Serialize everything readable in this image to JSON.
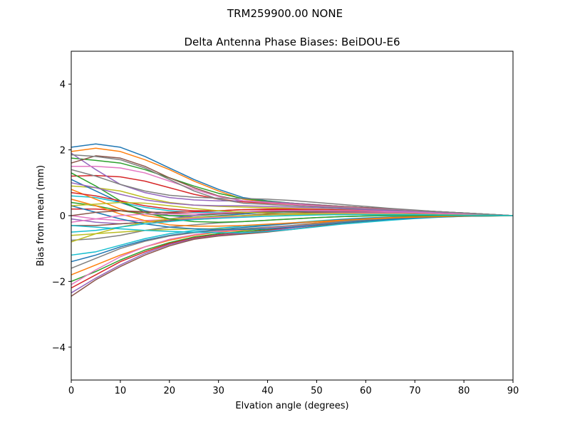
{
  "chart_data": {
    "type": "line",
    "suptitle": "TRM259900.00    NONE",
    "title": "Delta Antenna Phase Biases: BeiDOU-E6",
    "xlabel": "Elvation angle (degrees)",
    "ylabel": "Bias from mean (mm)",
    "xlim": [
      0,
      90
    ],
    "ylim": [
      -5,
      5
    ],
    "xticks": [
      0,
      10,
      20,
      30,
      40,
      50,
      60,
      70,
      80,
      90
    ],
    "yticks": [
      -4,
      -2,
      0,
      2,
      4
    ],
    "grid": false,
    "x": [
      0,
      5,
      10,
      15,
      20,
      25,
      30,
      35,
      40,
      45,
      50,
      55,
      60,
      65,
      70,
      75,
      80,
      85,
      90
    ],
    "series_colors": [
      "#1f77b4",
      "#ff7f0e",
      "#2ca02c",
      "#d62728",
      "#9467bd",
      "#8c564b",
      "#e377c2",
      "#7f7f7f",
      "#bcbd22",
      "#17becf"
    ],
    "series": [
      {
        "values": [
          2.08,
          2.18,
          2.08,
          1.8,
          1.45,
          1.1,
          0.8,
          0.55,
          0.45,
          0.38,
          0.32,
          0.28,
          0.24,
          0.2,
          0.16,
          0.12,
          0.08,
          0.04,
          0.0
        ]
      },
      {
        "values": [
          1.95,
          2.05,
          1.95,
          1.7,
          1.4,
          1.05,
          0.75,
          0.5,
          0.42,
          0.36,
          0.3,
          0.26,
          0.22,
          0.18,
          0.14,
          0.1,
          0.07,
          0.03,
          0.0
        ]
      },
      {
        "values": [
          1.75,
          1.68,
          1.6,
          1.4,
          1.15,
          0.9,
          0.68,
          0.52,
          0.44,
          0.38,
          0.33,
          0.28,
          0.24,
          0.2,
          0.16,
          0.12,
          0.08,
          0.04,
          0.0
        ]
      },
      {
        "values": [
          1.2,
          1.22,
          1.18,
          1.05,
          0.85,
          0.65,
          0.5,
          0.42,
          0.38,
          0.34,
          0.3,
          0.26,
          0.22,
          0.18,
          0.14,
          0.1,
          0.07,
          0.03,
          0.0
        ]
      },
      {
        "values": [
          1.9,
          1.4,
          0.95,
          0.7,
          0.55,
          0.48,
          0.45,
          0.45,
          0.42,
          0.38,
          0.33,
          0.28,
          0.24,
          0.2,
          0.16,
          0.12,
          0.08,
          0.04,
          0.0
        ]
      },
      {
        "values": [
          1.6,
          1.82,
          1.75,
          1.5,
          1.15,
          0.85,
          0.6,
          0.45,
          0.4,
          0.36,
          0.32,
          0.28,
          0.24,
          0.2,
          0.16,
          0.12,
          0.08,
          0.04,
          0.0
        ]
      },
      {
        "values": [
          1.5,
          1.5,
          1.45,
          1.3,
          1.05,
          0.8,
          0.58,
          0.45,
          0.4,
          0.35,
          0.3,
          0.26,
          0.22,
          0.18,
          0.14,
          0.1,
          0.07,
          0.03,
          0.0
        ]
      },
      {
        "values": [
          1.85,
          1.8,
          1.7,
          1.45,
          1.1,
          0.75,
          0.5,
          0.38,
          0.34,
          0.3,
          0.27,
          0.24,
          0.2,
          0.17,
          0.13,
          0.1,
          0.07,
          0.03,
          0.0
        ]
      },
      {
        "values": [
          0.9,
          0.85,
          0.75,
          0.55,
          0.4,
          0.32,
          0.28,
          0.26,
          0.24,
          0.22,
          0.2,
          0.18,
          0.16,
          0.14,
          0.12,
          0.09,
          0.06,
          0.03,
          0.0
        ]
      },
      {
        "values": [
          0.6,
          0.55,
          0.4,
          0.25,
          0.15,
          0.1,
          0.1,
          0.12,
          0.14,
          0.15,
          0.15,
          0.14,
          0.13,
          0.12,
          0.1,
          0.08,
          0.05,
          0.02,
          0.0
        ]
      },
      {
        "values": [
          1.1,
          0.75,
          0.4,
          0.15,
          0.0,
          -0.05,
          0.0,
          0.05,
          0.1,
          0.12,
          0.13,
          0.13,
          0.12,
          0.1,
          0.08,
          0.06,
          0.04,
          0.02,
          0.0
        ]
      },
      {
        "values": [
          0.8,
          0.5,
          0.2,
          0.0,
          -0.1,
          -0.12,
          -0.08,
          0.0,
          0.05,
          0.08,
          0.1,
          0.1,
          0.1,
          0.09,
          0.08,
          0.06,
          0.04,
          0.02,
          0.0
        ]
      },
      {
        "values": [
          0.4,
          0.3,
          0.15,
          0.05,
          0.0,
          0.0,
          0.05,
          0.1,
          0.12,
          0.13,
          0.13,
          0.12,
          0.11,
          0.1,
          0.08,
          0.06,
          0.04,
          0.02,
          0.0
        ]
      },
      {
        "values": [
          0.2,
          0.2,
          0.15,
          0.1,
          0.1,
          0.12,
          0.15,
          0.18,
          0.18,
          0.17,
          0.16,
          0.14,
          0.12,
          0.1,
          0.08,
          0.06,
          0.04,
          0.02,
          0.0
        ]
      },
      {
        "values": [
          -0.1,
          -0.2,
          -0.25,
          -0.2,
          -0.1,
          0.0,
          0.08,
          0.12,
          0.14,
          0.14,
          0.13,
          0.12,
          0.11,
          0.1,
          0.08,
          0.06,
          0.04,
          0.02,
          0.0
        ]
      },
      {
        "values": [
          -0.3,
          -0.3,
          -0.25,
          -0.2,
          -0.15,
          -0.1,
          -0.05,
          0.0,
          0.05,
          0.08,
          0.1,
          0.1,
          0.1,
          0.09,
          0.08,
          0.06,
          0.04,
          0.02,
          0.0
        ]
      },
      {
        "values": [
          0.0,
          -0.1,
          -0.15,
          -0.15,
          -0.12,
          -0.08,
          -0.05,
          -0.02,
          0.02,
          0.05,
          0.07,
          0.08,
          0.08,
          0.08,
          0.07,
          0.05,
          0.04,
          0.02,
          0.0
        ]
      },
      {
        "values": [
          -0.75,
          -0.7,
          -0.6,
          -0.45,
          -0.35,
          -0.28,
          -0.22,
          -0.18,
          -0.14,
          -0.1,
          -0.06,
          -0.03,
          -0.01,
          0.0,
          0.0,
          0.0,
          0.0,
          0.0,
          0.0
        ]
      },
      {
        "values": [
          -0.8,
          -0.55,
          -0.35,
          -0.2,
          -0.1,
          -0.05,
          -0.02,
          0.0,
          0.02,
          0.03,
          0.04,
          0.05,
          0.05,
          0.05,
          0.04,
          0.03,
          0.02,
          0.01,
          0.0
        ]
      },
      {
        "values": [
          -1.2,
          -1.1,
          -0.9,
          -0.7,
          -0.55,
          -0.45,
          -0.38,
          -0.32,
          -0.28,
          -0.22,
          -0.16,
          -0.11,
          -0.07,
          -0.04,
          -0.02,
          -0.01,
          0.0,
          0.0,
          0.0
        ]
      },
      {
        "values": [
          -1.4,
          -1.2,
          -0.95,
          -0.75,
          -0.6,
          -0.5,
          -0.42,
          -0.36,
          -0.3,
          -0.24,
          -0.18,
          -0.12,
          -0.08,
          -0.05,
          -0.03,
          -0.01,
          0.0,
          0.0,
          0.0
        ]
      },
      {
        "values": [
          -1.8,
          -1.5,
          -1.2,
          -0.95,
          -0.75,
          -0.6,
          -0.5,
          -0.44,
          -0.38,
          -0.3,
          -0.22,
          -0.15,
          -0.1,
          -0.06,
          -0.03,
          -0.01,
          0.0,
          0.0,
          0.0
        ]
      },
      {
        "values": [
          -2.0,
          -1.7,
          -1.35,
          -1.05,
          -0.82,
          -0.65,
          -0.55,
          -0.48,
          -0.42,
          -0.34,
          -0.25,
          -0.18,
          -0.12,
          -0.07,
          -0.04,
          -0.02,
          0.0,
          0.0,
          0.0
        ]
      },
      {
        "values": [
          -2.2,
          -1.8,
          -1.4,
          -1.1,
          -0.85,
          -0.68,
          -0.58,
          -0.52,
          -0.45,
          -0.36,
          -0.27,
          -0.2,
          -0.14,
          -0.09,
          -0.05,
          -0.02,
          0.0,
          0.0,
          0.0
        ]
      },
      {
        "values": [
          -2.35,
          -1.9,
          -1.5,
          -1.15,
          -0.88,
          -0.7,
          -0.6,
          -0.54,
          -0.47,
          -0.38,
          -0.29,
          -0.22,
          -0.16,
          -0.1,
          -0.06,
          -0.03,
          -0.01,
          0.0,
          0.0
        ]
      },
      {
        "values": [
          -2.45,
          -1.95,
          -1.55,
          -1.2,
          -0.92,
          -0.72,
          -0.62,
          -0.56,
          -0.5,
          -0.42,
          -0.32,
          -0.24,
          -0.18,
          -0.12,
          -0.07,
          -0.03,
          -0.01,
          0.0,
          0.0
        ]
      },
      {
        "values": [
          -2.1,
          -1.65,
          -1.25,
          -0.95,
          -0.72,
          -0.58,
          -0.48,
          -0.42,
          -0.38,
          -0.32,
          -0.26,
          -0.2,
          -0.15,
          -0.1,
          -0.06,
          -0.03,
          -0.01,
          0.0,
          0.0
        ]
      },
      {
        "values": [
          -1.6,
          -1.3,
          -1.0,
          -0.78,
          -0.62,
          -0.52,
          -0.45,
          -0.4,
          -0.35,
          -0.3,
          -0.24,
          -0.18,
          -0.13,
          -0.09,
          -0.05,
          -0.02,
          -0.01,
          0.0,
          0.0
        ]
      },
      {
        "values": [
          -0.6,
          -0.55,
          -0.5,
          -0.45,
          -0.42,
          -0.4,
          -0.4,
          -0.42,
          -0.4,
          -0.35,
          -0.28,
          -0.22,
          -0.16,
          -0.11,
          -0.07,
          -0.04,
          -0.02,
          -0.01,
          0.0
        ]
      },
      {
        "values": [
          -0.3,
          -0.35,
          -0.4,
          -0.45,
          -0.48,
          -0.5,
          -0.52,
          -0.52,
          -0.48,
          -0.42,
          -0.34,
          -0.26,
          -0.2,
          -0.14,
          -0.09,
          -0.05,
          -0.02,
          -0.01,
          0.0
        ]
      },
      {
        "values": [
          0.3,
          0.1,
          -0.1,
          -0.25,
          -0.35,
          -0.4,
          -0.42,
          -0.42,
          -0.4,
          -0.35,
          -0.28,
          -0.22,
          -0.16,
          -0.11,
          -0.07,
          -0.04,
          -0.02,
          -0.01,
          0.0
        ]
      },
      {
        "values": [
          0.5,
          0.3,
          0.05,
          -0.15,
          -0.28,
          -0.32,
          -0.32,
          -0.3,
          -0.26,
          -0.22,
          -0.18,
          -0.14,
          -0.1,
          -0.07,
          -0.05,
          -0.03,
          -0.01,
          0.0,
          0.0
        ]
      },
      {
        "values": [
          1.3,
          0.9,
          0.45,
          0.1,
          -0.1,
          -0.18,
          -0.2,
          -0.18,
          -0.14,
          -0.1,
          -0.06,
          -0.03,
          -0.01,
          0.0,
          0.0,
          0.0,
          0.0,
          0.0,
          0.0
        ]
      },
      {
        "values": [
          0.7,
          0.6,
          0.45,
          0.3,
          0.2,
          0.15,
          0.15,
          0.18,
          0.2,
          0.2,
          0.19,
          0.17,
          0.15,
          0.13,
          0.1,
          0.07,
          0.05,
          0.02,
          0.0
        ]
      },
      {
        "values": [
          1.0,
          0.85,
          0.65,
          0.48,
          0.38,
          0.32,
          0.3,
          0.3,
          0.28,
          0.26,
          0.24,
          0.21,
          0.18,
          0.15,
          0.12,
          0.09,
          0.06,
          0.03,
          0.0
        ]
      },
      {
        "values": [
          0.0,
          0.1,
          0.15,
          0.12,
          0.08,
          0.05,
          0.05,
          0.08,
          0.12,
          0.14,
          0.15,
          0.14,
          0.13,
          0.11,
          0.09,
          0.07,
          0.04,
          0.02,
          0.0
        ]
      },
      {
        "values": [
          -0.2,
          -0.1,
          0.0,
          0.05,
          0.05,
          0.05,
          0.08,
          0.12,
          0.15,
          0.16,
          0.16,
          0.15,
          0.14,
          0.12,
          0.1,
          0.07,
          0.05,
          0.02,
          0.0
        ]
      },
      {
        "values": [
          1.4,
          1.2,
          0.95,
          0.75,
          0.62,
          0.56,
          0.53,
          0.52,
          0.5,
          0.46,
          0.4,
          0.34,
          0.28,
          0.22,
          0.17,
          0.12,
          0.08,
          0.04,
          0.0
        ]
      },
      {
        "values": [
          0.3,
          0.35,
          0.4,
          0.38,
          0.3,
          0.22,
          0.15,
          0.1,
          0.08,
          0.07,
          0.06,
          0.06,
          0.05,
          0.05,
          0.04,
          0.03,
          0.02,
          0.01,
          0.0
        ]
      },
      {
        "values": [
          -0.5,
          -0.45,
          -0.35,
          -0.25,
          -0.18,
          -0.12,
          -0.08,
          -0.05,
          -0.02,
          0.0,
          0.02,
          0.03,
          0.03,
          0.03,
          0.03,
          0.02,
          0.01,
          0.01,
          0.0
        ]
      }
    ]
  }
}
